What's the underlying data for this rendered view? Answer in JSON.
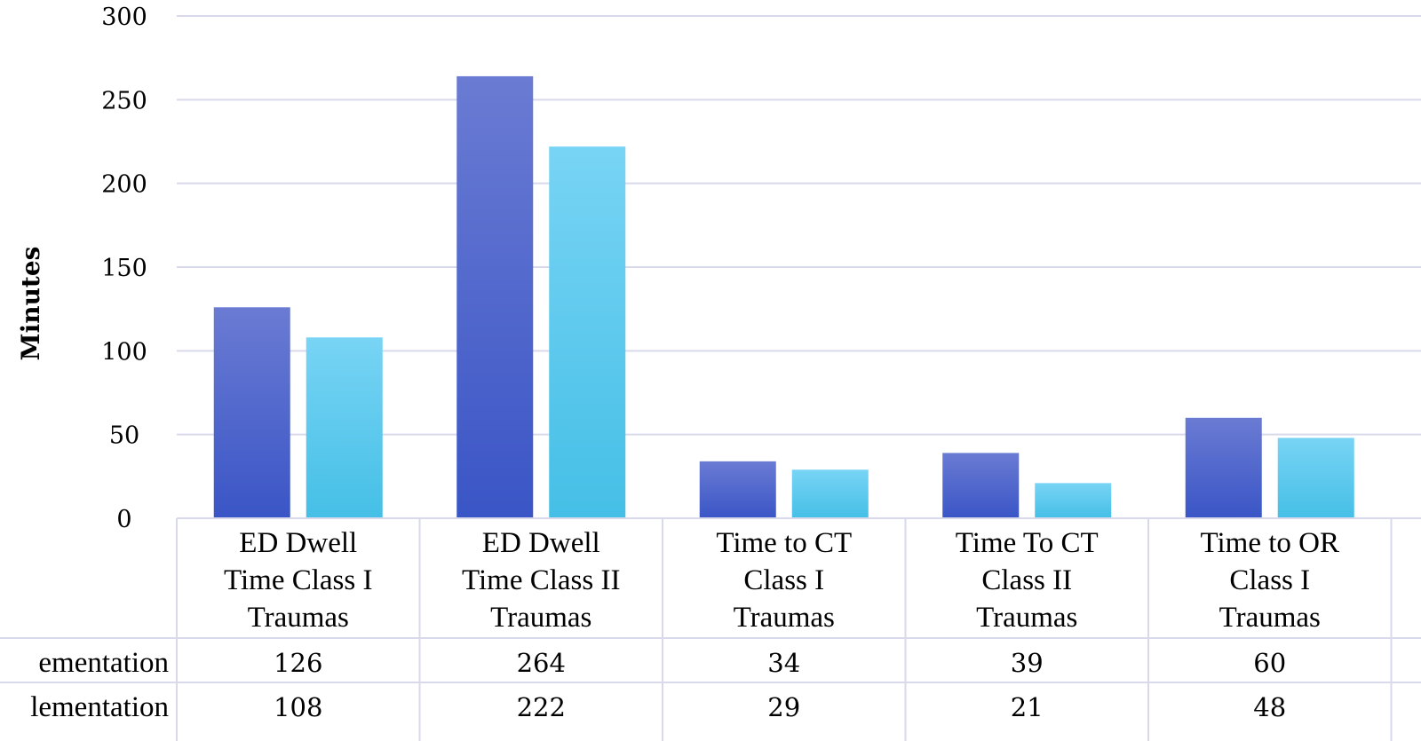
{
  "chart_data": {
    "type": "bar",
    "title": "",
    "ylabel": "Minutes",
    "xlabel": "",
    "ylim": [
      0,
      300
    ],
    "yticks": [
      "0",
      "50",
      "100",
      "150",
      "200",
      "250",
      "300"
    ],
    "grid": true,
    "categories": [
      [
        "ED Dwell",
        "Time Class I",
        "Traumas"
      ],
      [
        "ED Dwell",
        "Time Class II",
        "Traumas"
      ],
      [
        "Time to CT",
        "Class I",
        "Traumas"
      ],
      [
        "Time To CT",
        "Class II",
        "Traumas"
      ],
      [
        "Time to OR",
        "Class I",
        "Traumas"
      ]
    ],
    "series": [
      {
        "name": "ementation",
        "values": [
          126,
          264,
          34,
          39,
          60
        ],
        "color_top": "#6a7bd3",
        "color_bottom": "#3a55c6"
      },
      {
        "name": "lementation",
        "values": [
          108,
          222,
          29,
          21,
          48
        ],
        "color_top": "#78d4f5",
        "color_bottom": "#45bfe6"
      }
    ],
    "data_table": {
      "rows": [
        {
          "label": "ementation",
          "values": [
            "126",
            "264",
            "34",
            "39",
            "60"
          ]
        },
        {
          "label": "lementation",
          "values": [
            "108",
            "222",
            "29",
            "21",
            "48"
          ]
        }
      ]
    },
    "grid_color": "#d9d9ec"
  }
}
